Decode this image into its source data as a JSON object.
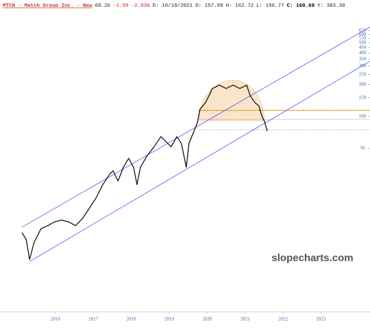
{
  "chart_data": {
    "type": "line",
    "header": [
      {
        "text": "MTCH - Match Group Inc. - New",
        "color": "#c0392b"
      },
      {
        "text": "68.26",
        "color": "#222222"
      },
      {
        "text": "-1.99",
        "color": "#d02020"
      },
      {
        "text": "-2.83%",
        "color": "#d02020"
      },
      {
        "text": "D: 10/19/2021",
        "color": "#222222"
      },
      {
        "text": "O: 157.99",
        "color": "#222222"
      },
      {
        "text": "H: 162.72",
        "color": "#222222"
      },
      {
        "text": "L: 156.77",
        "color": "#222222"
      },
      {
        "text": "C: 160.69",
        "color": "#000000"
      },
      {
        "text": "Y: 383.30",
        "color": "#222222"
      }
    ],
    "watermark": "slopecharts.com",
    "log_scale": true,
    "xlim": [
      2014.54,
      2024.29
    ],
    "xticks": [
      2016,
      2017,
      2018,
      2019,
      2020,
      2021,
      2022,
      2023
    ],
    "ylim": [
      1.4,
      1180
    ],
    "yticks": [
      650,
      600,
      550,
      500,
      450,
      400,
      350,
      300,
      250,
      200,
      150,
      100,
      50
    ],
    "series": [
      {
        "name": "MTCH",
        "color": "#111111",
        "x": [
          2015.12,
          2015.23,
          2015.32,
          2015.44,
          2015.62,
          2015.8,
          2015.98,
          2016.16,
          2016.35,
          2016.53,
          2016.71,
          2016.89,
          2017.07,
          2017.25,
          2017.43,
          2017.52,
          2017.65,
          2017.79,
          2017.93,
          2018.06,
          2018.15,
          2018.24,
          2018.42,
          2018.6,
          2018.78,
          2018.87,
          2019.05,
          2019.2,
          2019.32,
          2019.45,
          2019.52,
          2019.63,
          2019.74,
          2019.81,
          2019.96,
          2020.14,
          2020.32,
          2020.5,
          2020.68,
          2020.86,
          2021.04,
          2021.13,
          2021.25,
          2021.36,
          2021.44,
          2021.51,
          2021.58
        ],
        "values": [
          7.9,
          6.8,
          4.4,
          6.4,
          8.6,
          9.2,
          10.0,
          10.4,
          10.0,
          9.2,
          10.7,
          13.4,
          16.8,
          22.6,
          28.3,
          30.5,
          24.4,
          32.9,
          40.0,
          32.9,
          22.6,
          32.9,
          42.5,
          51.5,
          64.4,
          59.8,
          51.5,
          64.4,
          55.5,
          32.9,
          55.5,
          69.5,
          87,
          117,
          136,
          184,
          198,
          184,
          198,
          184,
          198,
          158,
          136,
          126,
          101,
          89.6,
          72.7
        ]
      }
    ],
    "trendlines": [
      {
        "x": [
          2015.12,
          2024.29
        ],
        "values": [
          8.9,
          705
        ],
        "color": "#5555ee"
      },
      {
        "x": [
          2015.32,
          2024.29
        ],
        "values": [
          4.2,
          334
        ],
        "color": "#5555ee"
      }
    ],
    "levels": [
      {
        "value": 114,
        "color": "#d08a00"
      },
      {
        "value": 93.7,
        "color": "#d06060"
      },
      {
        "value": 74.8,
        "color": "#d06060"
      }
    ]
  }
}
